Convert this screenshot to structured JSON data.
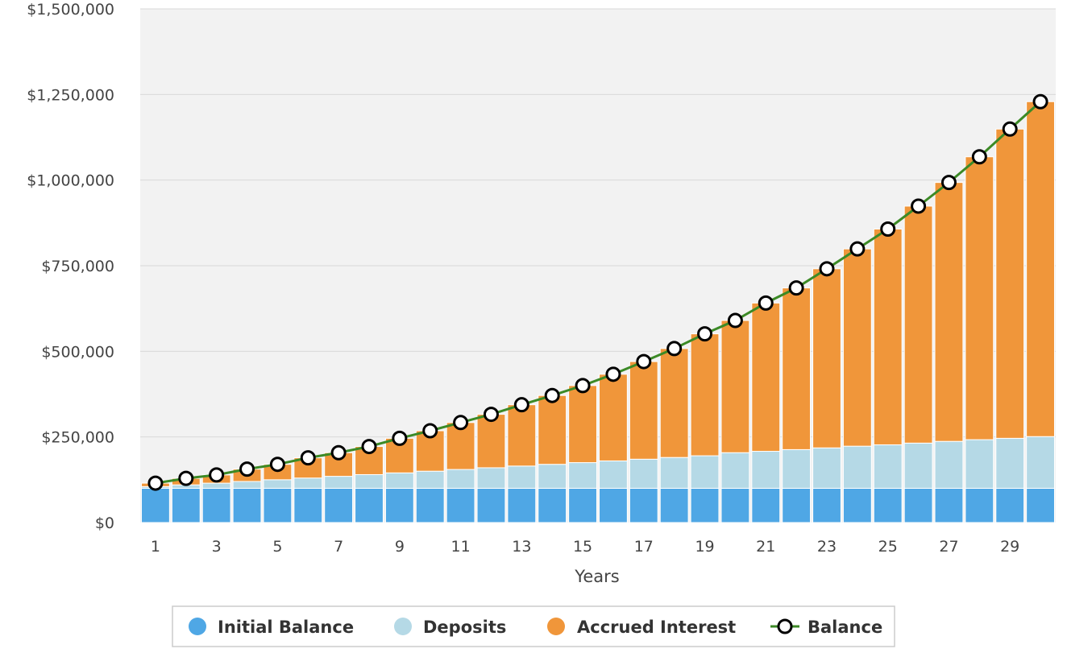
{
  "chart_data": {
    "type": "bar",
    "stacked": true,
    "categories": [
      1,
      2,
      3,
      4,
      5,
      6,
      7,
      8,
      9,
      10,
      11,
      12,
      13,
      14,
      15,
      16,
      17,
      18,
      19,
      20,
      21,
      22,
      23,
      24,
      25,
      26,
      27,
      28,
      29,
      30
    ],
    "x_tick_labels": [
      "1",
      "3",
      "5",
      "7",
      "9",
      "11",
      "13",
      "15",
      "17",
      "19",
      "21",
      "23",
      "25",
      "27",
      "29"
    ],
    "xlabel": "Years",
    "ylabel": "",
    "ylim": [
      0,
      1500000
    ],
    "y_ticks": [
      0,
      250000,
      500000,
      750000,
      1000000,
      1250000,
      1500000
    ],
    "y_tick_labels": [
      "$0",
      "$250,000",
      "$500,000",
      "$750,000",
      "$1,000,000",
      "$1,250,000",
      "$1,500,000"
    ],
    "grid": true,
    "legend": "bottom",
    "series": [
      {
        "name": "Initial Balance",
        "color": "#4fa7e5",
        "values": [
          100000,
          100000,
          100000,
          100000,
          100000,
          100000,
          100000,
          100000,
          100000,
          100000,
          100000,
          100000,
          100000,
          100000,
          100000,
          100000,
          100000,
          100000,
          100000,
          100000,
          100000,
          100000,
          100000,
          100000,
          100000,
          100000,
          100000,
          100000,
          100000,
          100000
        ]
      },
      {
        "name": "Deposits",
        "color": "#b5d9e6",
        "values": [
          5000,
          10000,
          15000,
          20000,
          25000,
          30000,
          35000,
          40000,
          45000,
          50000,
          55000,
          60000,
          65000,
          70000,
          75000,
          80000,
          85000,
          90000,
          95000,
          104000,
          108000,
          113000,
          118000,
          123000,
          127000,
          132000,
          137000,
          142000,
          146000,
          151000
        ]
      },
      {
        "name": "Accrued Interest",
        "color": "#f0963a",
        "values": [
          10000,
          19000,
          24000,
          36000,
          45000,
          59000,
          69000,
          82000,
          101000,
          118000,
          137000,
          156000,
          179000,
          201000,
          225000,
          253000,
          285000,
          318000,
          356000,
          386000,
          433000,
          472000,
          523000,
          576000,
          630000,
          692000,
          756000,
          826000,
          903000,
          978000
        ]
      }
    ],
    "line_series": {
      "name": "Balance",
      "color": "#3c8a26",
      "marker_color": "#ffffff",
      "values": [
        115000,
        129000,
        139000,
        156000,
        170000,
        189000,
        204000,
        222000,
        246000,
        268000,
        292000,
        316000,
        344000,
        371000,
        400000,
        433000,
        470000,
        508000,
        551000,
        590000,
        641000,
        685000,
        741000,
        799000,
        857000,
        924000,
        993000,
        1068000,
        1149000,
        1229000
      ]
    }
  }
}
